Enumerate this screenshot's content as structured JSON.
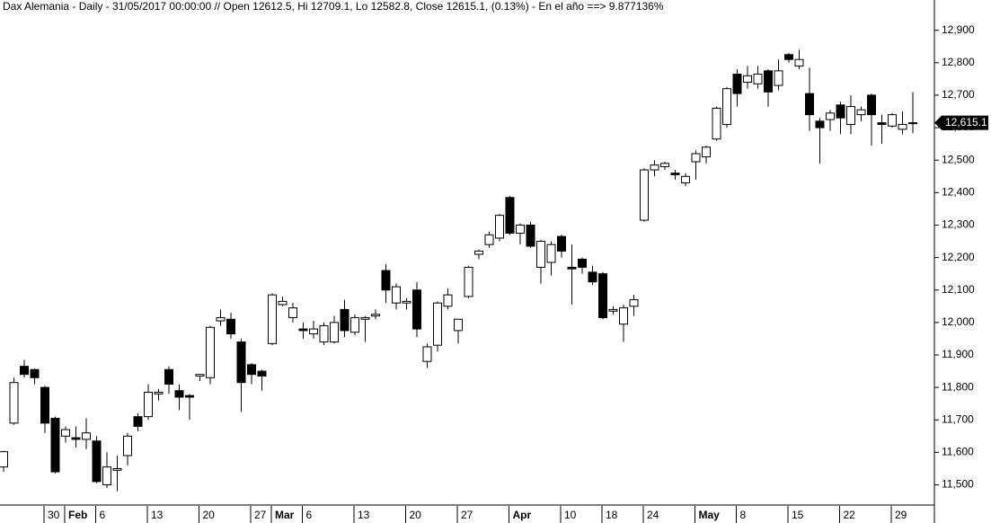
{
  "chart_data": {
    "type": "candlestick",
    "title": "Dax Alemania - Daily - 31/05/2017 00:00:00 // Open 12612.5, Hi 12709.1, Lo 12582.8, Close 12615.1, (0.13%) - En el año ==> 9.877136%",
    "categories": [
      null,
      null,
      null,
      null,
      "30",
      null,
      "Feb",
      null,
      null,
      "6",
      null,
      null,
      null,
      null,
      "13",
      null,
      null,
      null,
      null,
      "20",
      null,
      null,
      null,
      null,
      "27",
      null,
      "Mar",
      null,
      null,
      "6",
      null,
      null,
      null,
      null,
      "13",
      null,
      null,
      null,
      null,
      "20",
      null,
      null,
      null,
      null,
      "27",
      null,
      null,
      null,
      null,
      "Apr",
      null,
      null,
      null,
      null,
      "10",
      null,
      null,
      null,
      "18",
      null,
      null,
      null,
      "24",
      null,
      null,
      null,
      null,
      "May",
      null,
      null,
      null,
      "8",
      null,
      null,
      null,
      null,
      "15",
      null,
      null,
      null,
      null,
      "22",
      null,
      null,
      null,
      null,
      "29",
      null,
      null
    ],
    "open": [
      11555,
      11690,
      11865,
      11855,
      11800,
      11705,
      11650,
      11645,
      11640,
      11635,
      11500,
      11545,
      11590,
      11710,
      11710,
      11780,
      11855,
      11790,
      11775,
      11835,
      11830,
      12005,
      12010,
      11940,
      11870,
      11850,
      11935,
      12055,
      12015,
      11980,
      11965,
      11940,
      11940,
      12040,
      11970,
      12010,
      12020,
      12160,
      12060,
      12060,
      12100,
      11880,
      11930,
      12050,
      11975,
      12080,
      12210,
      12240,
      12260,
      12385,
      12275,
      12300,
      12170,
      12185,
      12265,
      12170,
      12195,
      12155,
      12150,
      12035,
      11995,
      12050,
      12315,
      12470,
      12480,
      12460,
      12430,
      12495,
      12510,
      12565,
      12610,
      12765,
      12740,
      12735,
      12775,
      12730,
      12825,
      12790,
      12705,
      12620,
      12625,
      12670,
      12610,
      12640,
      12700,
      12615,
      12605,
      12595,
      12612.5
    ],
    "high": [
      11605,
      11830,
      11885,
      11858,
      11805,
      11710,
      11680,
      11680,
      11705,
      11650,
      11600,
      11590,
      11660,
      11720,
      11810,
      11795,
      11865,
      11810,
      11780,
      11840,
      11990,
      12040,
      12030,
      11950,
      11875,
      11855,
      12090,
      12080,
      12060,
      12000,
      12005,
      12000,
      12020,
      12070,
      12025,
      12020,
      12040,
      12180,
      12120,
      12075,
      12125,
      11935,
      12065,
      12105,
      12010,
      12175,
      12225,
      12280,
      12335,
      12390,
      12305,
      12310,
      12255,
      12250,
      12270,
      12240,
      12200,
      12175,
      12155,
      12050,
      12055,
      12085,
      12475,
      12500,
      12495,
      12470,
      12460,
      12530,
      12545,
      12665,
      12725,
      12780,
      12790,
      12790,
      12780,
      12810,
      12830,
      12840,
      12785,
      12630,
      12655,
      12680,
      12700,
      12665,
      12705,
      12640,
      12645,
      12650,
      12709.1
    ],
    "low": [
      11540,
      11685,
      11830,
      11810,
      11660,
      11535,
      11630,
      11615,
      11610,
      11505,
      11490,
      11480,
      11560,
      11665,
      11700,
      11760,
      11780,
      11730,
      11700,
      11820,
      11810,
      11990,
      11950,
      11725,
      11810,
      11790,
      11930,
      12050,
      12000,
      11950,
      11950,
      11930,
      11935,
      11955,
      11960,
      11940,
      12010,
      12060,
      12040,
      12040,
      11955,
      11860,
      11910,
      12040,
      11935,
      12075,
      12195,
      12230,
      12250,
      12270,
      12240,
      12230,
      12120,
      12145,
      12200,
      12055,
      12150,
      12115,
      12010,
      12025,
      11940,
      12020,
      12310,
      12450,
      12470,
      12440,
      12420,
      12440,
      12490,
      12560,
      12600,
      12665,
      12720,
      12720,
      12665,
      12715,
      12800,
      12780,
      12590,
      12490,
      12590,
      12580,
      12580,
      12620,
      12545,
      12550,
      12600,
      12580,
      12582.8
    ],
    "close": [
      11602,
      11815,
      11840,
      11830,
      11690,
      11540,
      11670,
      11640,
      11660,
      11510,
      11555,
      11550,
      11650,
      11680,
      11785,
      11785,
      11810,
      11770,
      11770,
      11840,
      11985,
      12015,
      11965,
      11815,
      11840,
      11835,
      12085,
      12065,
      12045,
      11975,
      11980,
      11990,
      12000,
      11975,
      12015,
      12015,
      12025,
      12100,
      12110,
      12065,
      11980,
      11925,
      12060,
      12085,
      12010,
      12170,
      12220,
      12270,
      12330,
      12275,
      12300,
      12235,
      12250,
      12240,
      12220,
      12165,
      12170,
      12125,
      12015,
      12040,
      12045,
      12070,
      12470,
      12485,
      12490,
      12455,
      12450,
      12520,
      12540,
      12660,
      12720,
      12705,
      12760,
      12765,
      12710,
      12775,
      12810,
      12810,
      12640,
      12600,
      12645,
      12630,
      12665,
      12655,
      12640,
      12610,
      12640,
      12610,
      12615.1
    ],
    "ylim": [
      11435,
      12960
    ],
    "yticks": [
      {
        "value": 11500,
        "label": "11,500"
      },
      {
        "value": 11600,
        "label": "11,600"
      },
      {
        "value": 11700,
        "label": "11,700"
      },
      {
        "value": 11800,
        "label": "11,800"
      },
      {
        "value": 11900,
        "label": "11,900"
      },
      {
        "value": 12000,
        "label": "12,000"
      },
      {
        "value": 12100,
        "label": "12,100"
      },
      {
        "value": 12200,
        "label": "12,200"
      },
      {
        "value": 12300,
        "label": "12,300"
      },
      {
        "value": 12400,
        "label": "12,400"
      },
      {
        "value": 12500,
        "label": "12,500"
      },
      {
        "value": 12600,
        "label": "12,600"
      },
      {
        "value": 12700,
        "label": "12,700"
      },
      {
        "value": 12800,
        "label": "12,800"
      },
      {
        "value": 12900,
        "label": "12,900"
      }
    ],
    "last_price": {
      "value": 12615.1,
      "label": "12,615.1"
    },
    "up_color": "#ffffff",
    "down_color": "#000000"
  }
}
